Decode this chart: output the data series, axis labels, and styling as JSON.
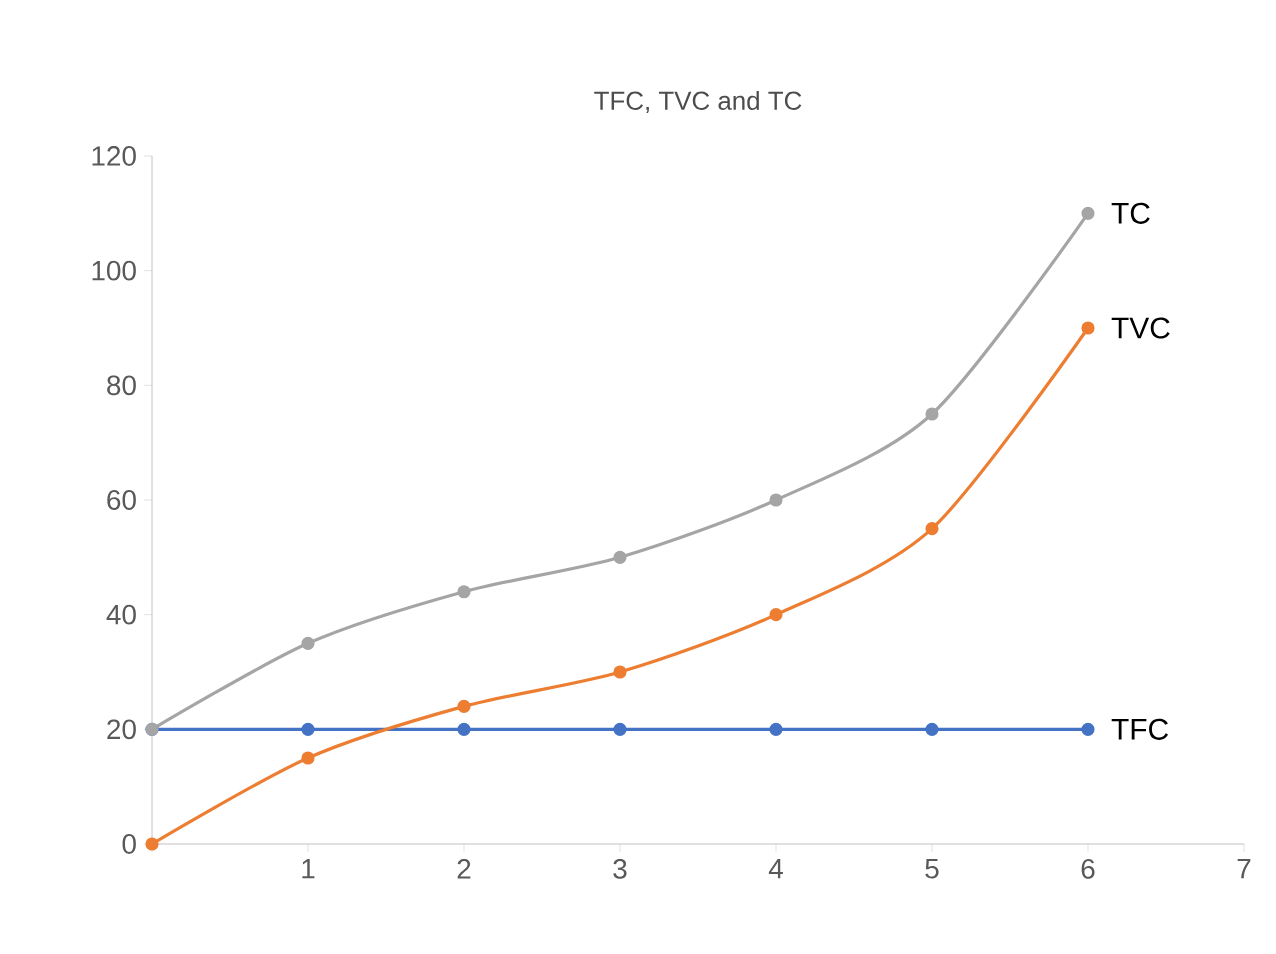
{
  "chart_data": {
    "type": "line",
    "title": "TFC, TVC and TC",
    "x": [
      0,
      1,
      2,
      3,
      4,
      5,
      6
    ],
    "series": [
      {
        "name": "TFC",
        "color": "#4472c4",
        "values": [
          20,
          20,
          20,
          20,
          20,
          20,
          20
        ]
      },
      {
        "name": "TVC",
        "color": "#ed7d31",
        "values": [
          0,
          15,
          24,
          30,
          40,
          55,
          90
        ]
      },
      {
        "name": "TC",
        "color": "#a5a5a5",
        "values": [
          20,
          35,
          44,
          50,
          60,
          75,
          110
        ]
      }
    ],
    "xlim": [
      0,
      7
    ],
    "xticks": [
      {
        "value": 0,
        "label": null
      },
      1,
      2,
      3,
      4,
      5,
      6,
      7
    ],
    "ylim": [
      0,
      120
    ],
    "yticks": [
      0,
      20,
      40,
      60,
      80,
      100,
      120
    ],
    "marker": "circle",
    "line_style": "solid",
    "grid": false
  }
}
